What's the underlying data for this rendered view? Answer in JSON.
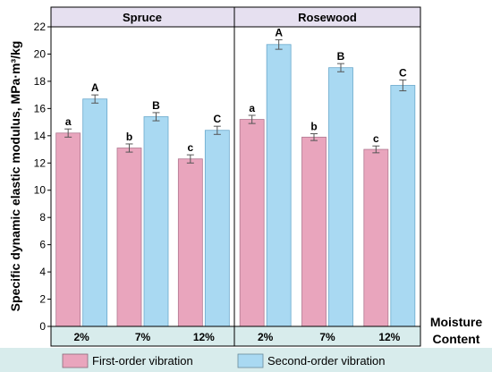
{
  "chart_data": {
    "type": "bar",
    "ylabel": "Specific dynamic elastic modulus, MPa·m³/kg",
    "xlabel_line1": "Moisture",
    "xlabel_line2": "Content",
    "ylim": [
      0,
      22
    ],
    "yticks": [
      0,
      2,
      4,
      6,
      8,
      10,
      12,
      14,
      16,
      18,
      20,
      22
    ],
    "categories": [
      "2%",
      "7%",
      "12%"
    ],
    "panels": [
      {
        "name": "Spruce",
        "series": [
          {
            "name": "First-order vibration",
            "values": [
              14.2,
              13.1,
              12.3
            ],
            "errors": [
              0.3,
              0.3,
              0.3
            ],
            "letters": [
              "a",
              "b",
              "c"
            ]
          },
          {
            "name": "Second-order vibration",
            "values": [
              16.7,
              15.4,
              14.4
            ],
            "errors": [
              0.3,
              0.3,
              0.3
            ],
            "letters": [
              "A",
              "B",
              "C"
            ]
          }
        ]
      },
      {
        "name": "Rosewood",
        "series": [
          {
            "name": "First-order vibration",
            "values": [
              15.2,
              13.9,
              13.0
            ],
            "errors": [
              0.3,
              0.25,
              0.25
            ],
            "letters": [
              "a",
              "b",
              "c"
            ]
          },
          {
            "name": "Second-order vibration",
            "values": [
              20.7,
              19.0,
              17.7
            ],
            "errors": [
              0.35,
              0.3,
              0.4
            ],
            "letters": [
              "A",
              "B",
              "C"
            ]
          }
        ]
      }
    ],
    "legend": {
      "position": "bottom",
      "entries": [
        "First-order vibration",
        "Second-order vibration"
      ]
    },
    "colors": {
      "first_order": "#e9a5bd",
      "second_order": "#a9d9f2",
      "panel_header": "#e6e0f0",
      "footer_band": "#d8ecec"
    }
  }
}
